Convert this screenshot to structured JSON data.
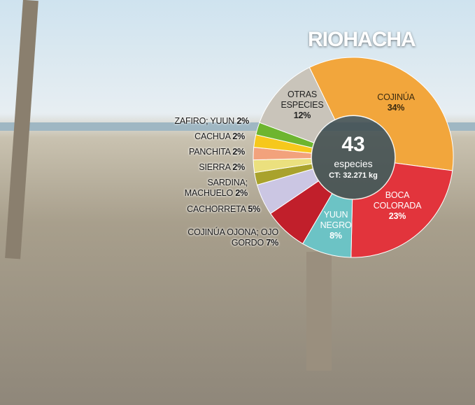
{
  "chart_data": {
    "type": "pie",
    "donut": true,
    "title": "RIOHACHA",
    "center": {
      "count": "43",
      "unit": "especies",
      "total": "CT: 32.271 kg"
    },
    "categories": [
      "COJINÚA",
      "BOCA COLORADA",
      "YUUN NEGRO",
      "COJINÚA OJONA; OJO GORDO",
      "CACHORRETA",
      "SARDINA; MACHUELO",
      "SIERRA",
      "PANCHITA",
      "CACHUA",
      "ZAFIRO; YUUN",
      "OTRAS ESPECIES"
    ],
    "values": [
      34,
      23,
      8,
      7,
      5,
      2,
      2,
      2,
      2,
      2,
      12
    ],
    "value_labels": [
      "34%",
      "23%",
      "8%",
      "7%",
      "5%",
      "2%",
      "2%",
      "2%",
      "2%",
      "2%",
      "12%"
    ],
    "colors": [
      "#f2a63c",
      "#e2343c",
      "#6cc3c5",
      "#c11f2b",
      "#cbc6e3",
      "#a9a22c",
      "#ebe07e",
      "#f2a27c",
      "#f6c81c",
      "#6db52f",
      "#c9c4ba"
    ]
  }
}
